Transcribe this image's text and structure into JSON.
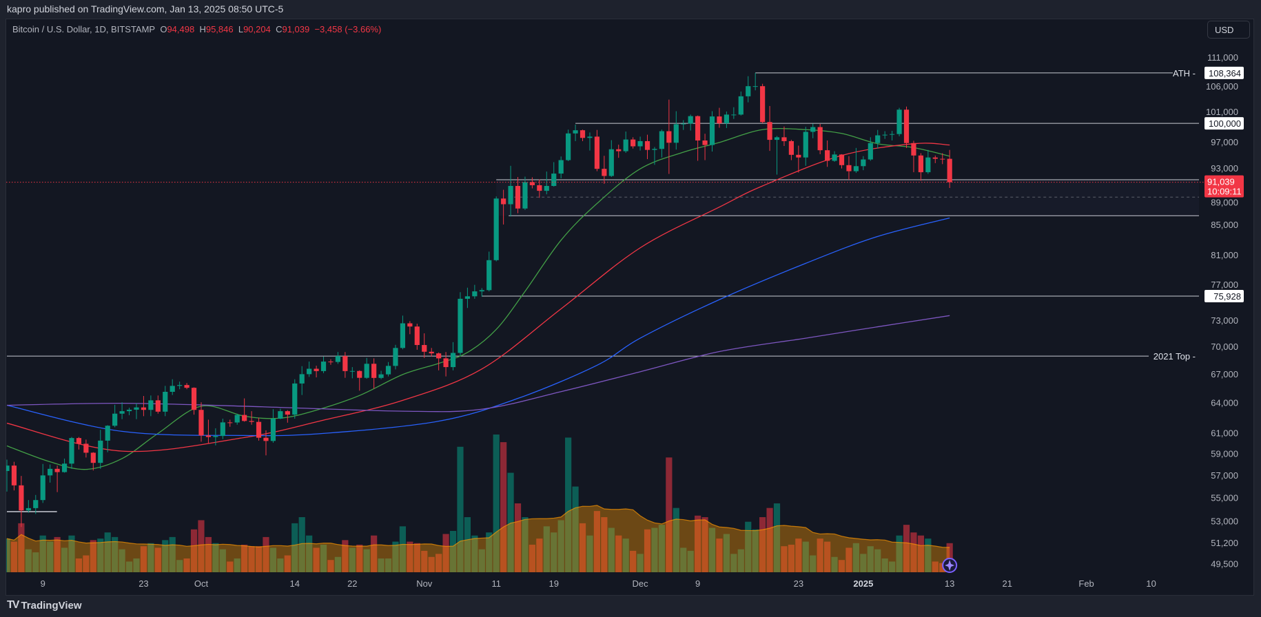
{
  "publish_line": "kapro published on TradingView.com, Jan 13, 2025 08:50 UTC-5",
  "legend": {
    "symbol": "Bitcoin / U.S. Dollar, 1D, BITSTAMP",
    "o_label": "O",
    "o": "94,498",
    "h_label": "H",
    "h": "95,846",
    "l_label": "L",
    "l": "90,204",
    "c_label": "C",
    "c": "91,039",
    "change": "−3,458 (−3.66%)"
  },
  "currency_button": "USD",
  "logo_text": "TradingView",
  "colors": {
    "up": "#089981",
    "down": "#f23645",
    "ma20": "#43a047",
    "ma50": "#f23645",
    "ma100": "#2962ff",
    "ma200": "#7e57c2",
    "volume_ma": "#ff9800",
    "background": "#131722"
  },
  "chart_data": {
    "type": "candlestick",
    "yscale": "log",
    "ylim": [
      49000,
      113000
    ],
    "grid": false,
    "y_ticks": [
      "111,000",
      "106,000",
      "101,000",
      "97,000",
      "93,000",
      "89,000",
      "85,000",
      "81,000",
      "77,000",
      "73,000",
      "70,000",
      "67,000",
      "64,000",
      "61,000",
      "59,000",
      "57,000",
      "55,000",
      "53,000",
      "51,200",
      "49,500"
    ],
    "x_ticks": [
      {
        "date": "2024-09-09",
        "label": "9"
      },
      {
        "date": "2024-09-23",
        "label": "23"
      },
      {
        "date": "2024-10-01",
        "label": "Oct"
      },
      {
        "date": "2024-10-14",
        "label": "14"
      },
      {
        "date": "2024-10-22",
        "label": "22"
      },
      {
        "date": "2024-11-01",
        "label": "Nov"
      },
      {
        "date": "2024-11-11",
        "label": "11"
      },
      {
        "date": "2024-11-19",
        "label": "19"
      },
      {
        "date": "2024-12-01",
        "label": "Dec"
      },
      {
        "date": "2024-12-09",
        "label": "9"
      },
      {
        "date": "2024-12-23",
        "label": "23"
      },
      {
        "date": "2025-01-01",
        "label": "2025",
        "bold": true
      },
      {
        "date": "2025-01-13",
        "label": "13"
      },
      {
        "date": "2025-01-21",
        "label": "21"
      },
      {
        "date": "2025-02-01",
        "label": "Feb"
      },
      {
        "date": "2025-02-10",
        "label": "10"
      }
    ],
    "start_date": "2024-09-04",
    "ohlc": [
      [
        57450,
        58500,
        55600,
        57950
      ],
      [
        57950,
        58300,
        55700,
        56150
      ],
      [
        56150,
        57000,
        52550,
        53950
      ],
      [
        53950,
        54850,
        53750,
        54150
      ],
      [
        54150,
        55300,
        53650,
        54850
      ],
      [
        54850,
        58100,
        54600,
        57050
      ],
      [
        57050,
        58050,
        56400,
        57650
      ],
      [
        57650,
        57950,
        55550,
        57350
      ],
      [
        57350,
        58600,
        57300,
        58130
      ],
      [
        58130,
        60650,
        57650,
        60550
      ],
      [
        60550,
        60650,
        59450,
        60000
      ],
      [
        60000,
        60400,
        58700,
        59150
      ],
      [
        59150,
        59200,
        57500,
        58200
      ],
      [
        58200,
        61350,
        57650,
        60300
      ],
      [
        60300,
        61800,
        59200,
        61750
      ],
      [
        61750,
        63850,
        61600,
        62950
      ],
      [
        62950,
        64100,
        62400,
        63200
      ],
      [
        63200,
        63550,
        62800,
        63350
      ],
      [
        63350,
        64000,
        62400,
        63580
      ],
      [
        63580,
        64750,
        62700,
        63330
      ],
      [
        63330,
        64800,
        62700,
        64300
      ],
      [
        64300,
        64800,
        62950,
        63150
      ],
      [
        63150,
        65800,
        62700,
        65180
      ],
      [
        65180,
        66500,
        64850,
        65800
      ],
      [
        65800,
        66250,
        65450,
        65890
      ],
      [
        65890,
        66100,
        65450,
        65600
      ],
      [
        65600,
        65650,
        62850,
        63330
      ],
      [
        63330,
        64100,
        60200,
        60800
      ],
      [
        60800,
        62350,
        60000,
        60650
      ],
      [
        60650,
        61500,
        59850,
        60750
      ],
      [
        60750,
        62450,
        60450,
        62080
      ],
      [
        62080,
        62350,
        61650,
        62070
      ],
      [
        62070,
        62950,
        61850,
        62820
      ],
      [
        62820,
        64500,
        62150,
        62220
      ],
      [
        62220,
        63200,
        61850,
        62130
      ],
      [
        62130,
        62550,
        60300,
        60580
      ],
      [
        60580,
        61300,
        58900,
        60270
      ],
      [
        60270,
        63400,
        60100,
        62450
      ],
      [
        62450,
        63450,
        62400,
        63200
      ],
      [
        63200,
        63300,
        62050,
        62850
      ],
      [
        62850,
        66500,
        62450,
        66050
      ],
      [
        66050,
        67900,
        64850,
        67040
      ],
      [
        67040,
        68400,
        66750,
        67620
      ],
      [
        67620,
        67950,
        66700,
        67370
      ],
      [
        67370,
        68950,
        67150,
        68400
      ],
      [
        68400,
        68650,
        68050,
        68360
      ],
      [
        68360,
        69450,
        68150,
        69000
      ],
      [
        69000,
        69450,
        66650,
        67370
      ],
      [
        67370,
        67800,
        66600,
        67380
      ],
      [
        67380,
        67450,
        65300,
        66650
      ],
      [
        66650,
        68800,
        66550,
        68160
      ],
      [
        68160,
        68750,
        65500,
        66640
      ],
      [
        66640,
        67400,
        66500,
        67020
      ],
      [
        67020,
        68350,
        66800,
        67930
      ],
      [
        67930,
        70250,
        67550,
        69900
      ],
      [
        69900,
        73600,
        69750,
        72700
      ],
      [
        72700,
        72950,
        71450,
        72330
      ],
      [
        72330,
        72650,
        69700,
        70230
      ],
      [
        70230,
        71550,
        68800,
        69480
      ],
      [
        69480,
        69900,
        68950,
        69300
      ],
      [
        69300,
        69400,
        67450,
        68750
      ],
      [
        68750,
        69450,
        66800,
        67800
      ],
      [
        67800,
        70550,
        67450,
        69350
      ],
      [
        69350,
        76400,
        69050,
        75600
      ],
      [
        75600,
        76950,
        74500,
        75900
      ],
      [
        75900,
        77300,
        75600,
        76500
      ],
      [
        76500,
        76900,
        75850,
        76650
      ],
      [
        76650,
        81500,
        76500,
        80400
      ],
      [
        80400,
        89000,
        80250,
        88700
      ],
      [
        88700,
        89950,
        85100,
        87900
      ],
      [
        87900,
        93450,
        86200,
        90500
      ],
      [
        90500,
        91800,
        86650,
        87300
      ],
      [
        87300,
        91850,
        87100,
        91050
      ],
      [
        91050,
        91750,
        90150,
        90600
      ],
      [
        90600,
        91450,
        88800,
        89800
      ],
      [
        89800,
        92600,
        89300,
        90500
      ],
      [
        90500,
        94000,
        90400,
        92300
      ],
      [
        92300,
        94850,
        91600,
        94300
      ],
      [
        94300,
        99000,
        94150,
        98400
      ],
      [
        98400,
        99800,
        97200,
        98900
      ],
      [
        98900,
        99000,
        97200,
        97700
      ],
      [
        97700,
        98550,
        95750,
        97900
      ],
      [
        97900,
        98950,
        92650,
        93000
      ],
      [
        93000,
        94950,
        90800,
        91950
      ],
      [
        91950,
        97350,
        91800,
        95950
      ],
      [
        95950,
        96650,
        94650,
        95650
      ],
      [
        95650,
        98700,
        95400,
        97450
      ],
      [
        97450,
        97800,
        96050,
        96400
      ],
      [
        96400,
        97900,
        95750,
        97200
      ],
      [
        97200,
        98200,
        94450,
        95850
      ],
      [
        95850,
        96300,
        93600,
        96000
      ],
      [
        96000,
        99000,
        94700,
        98750
      ],
      [
        98750,
        103850,
        92250,
        96950
      ],
      [
        96950,
        101950,
        95900,
        99850
      ],
      [
        99850,
        100500,
        98950,
        99950
      ],
      [
        99950,
        101400,
        98850,
        101150
      ],
      [
        101150,
        101250,
        94200,
        97300
      ],
      [
        97300,
        98350,
        94300,
        96600
      ],
      [
        96600,
        101950,
        95600,
        101100
      ],
      [
        101100,
        102500,
        99300,
        100000
      ],
      [
        100000,
        101900,
        99250,
        101400
      ],
      [
        101400,
        102600,
        100700,
        101400
      ],
      [
        101400,
        105200,
        101250,
        104400
      ],
      [
        104400,
        107800,
        103400,
        106100
      ],
      [
        106100,
        108364,
        105400,
        106100
      ],
      [
        106100,
        106500,
        100000,
        100200
      ],
      [
        100200,
        102800,
        95700,
        97400
      ],
      [
        97400,
        98000,
        92150,
        97800
      ],
      [
        97800,
        99500,
        96450,
        97200
      ],
      [
        97200,
        97400,
        94300,
        95100
      ],
      [
        95100,
        96500,
        92450,
        94700
      ],
      [
        94700,
        99450,
        93450,
        98650
      ],
      [
        98650,
        99950,
        97650,
        99400
      ],
      [
        99400,
        99900,
        95200,
        95800
      ],
      [
        95800,
        97300,
        93300,
        94200
      ],
      [
        94200,
        95650,
        94050,
        95150
      ],
      [
        95150,
        95200,
        93050,
        93550
      ],
      [
        93550,
        94900,
        91400,
        92650
      ],
      [
        92650,
        96150,
        92400,
        93400
      ],
      [
        93400,
        94900,
        92800,
        94400
      ],
      [
        94400,
        97800,
        94200,
        96900
      ],
      [
        96900,
        98950,
        96050,
        98100
      ],
      [
        98100,
        98750,
        97550,
        98200
      ],
      [
        98200,
        98800,
        97300,
        98300
      ],
      [
        98300,
        102500,
        97950,
        102200
      ],
      [
        102200,
        102700,
        96150,
        96900
      ],
      [
        96900,
        97250,
        92500,
        95000
      ],
      [
        95000,
        95350,
        91250,
        92500
      ],
      [
        92500,
        95850,
        92250,
        94700
      ],
      [
        94700,
        95000,
        93850,
        94500
      ],
      [
        94500,
        95350,
        93700,
        94498
      ],
      [
        94498,
        95846,
        90204,
        91039
      ]
    ],
    "volume": [
      2200,
      2000,
      3200,
      1500,
      1300,
      2400,
      2000,
      2300,
      1600,
      2400,
      900,
      1100,
      2100,
      2200,
      2600,
      2300,
      1500,
      700,
      900,
      1700,
      1900,
      1600,
      2100,
      2300,
      800,
      900,
      2800,
      3400,
      2300,
      1900,
      1500,
      700,
      900,
      1800,
      1700,
      1700,
      2300,
      1600,
      900,
      1100,
      3200,
      3600,
      2400,
      1600,
      1800,
      800,
      1000,
      2100,
      1600,
      1800,
      1500,
      2400,
      900,
      900,
      2000,
      3000,
      2000,
      1900,
      1400,
      1000,
      1200,
      2500,
      2700,
      8200,
      3600,
      2400,
      1500,
      2600,
      9000,
      8500,
      6500,
      4500,
      3600,
      1800,
      2200,
      3000,
      2600,
      3400,
      8800,
      5600,
      3200,
      2400,
      4000,
      3600,
      2900,
      2400,
      2200,
      1400,
      1200,
      2800,
      2900,
      3100,
      7500,
      4200,
      1600,
      1400,
      3700,
      3600,
      2900,
      2200,
      2500,
      1200,
      1500,
      3300,
      2800,
      3600,
      4200,
      4500,
      1700,
      1800,
      2200,
      2000,
      1100,
      2200,
      2000,
      1000,
      800,
      1600,
      1900,
      1200,
      1700,
      1500,
      900,
      700,
      2400,
      3100,
      2600,
      2400,
      2200,
      700,
      600,
      1900
    ],
    "moving_averages": [
      {
        "key": "ma20",
        "points": [
          [
            "2024-09-04",
            59800
          ],
          [
            "2024-09-10",
            58300
          ],
          [
            "2024-09-15",
            57600
          ],
          [
            "2024-09-20",
            58600
          ],
          [
            "2024-09-25",
            61000
          ],
          [
            "2024-10-01",
            63700
          ],
          [
            "2024-10-07",
            62700
          ],
          [
            "2024-10-12",
            62500
          ],
          [
            "2024-10-17",
            63300
          ],
          [
            "2024-10-23",
            64800
          ],
          [
            "2024-10-29",
            67000
          ],
          [
            "2024-11-03",
            68200
          ],
          [
            "2024-11-07",
            69400
          ],
          [
            "2024-11-11",
            72000
          ],
          [
            "2024-11-15",
            76500
          ],
          [
            "2024-11-20",
            83000
          ],
          [
            "2024-11-25",
            88000
          ],
          [
            "2024-12-01",
            93000
          ],
          [
            "2024-12-07",
            95500
          ],
          [
            "2024-12-12",
            97000
          ],
          [
            "2024-12-18",
            99000
          ],
          [
            "2024-12-24",
            99000
          ],
          [
            "2024-12-29",
            98400
          ],
          [
            "2025-01-03",
            96800
          ],
          [
            "2025-01-08",
            96200
          ],
          [
            "2025-01-13",
            94900
          ]
        ]
      },
      {
        "key": "ma50",
        "points": [
          [
            "2024-09-04",
            62000
          ],
          [
            "2024-09-20",
            59300
          ],
          [
            "2024-10-07",
            60600
          ],
          [
            "2024-10-18",
            62300
          ],
          [
            "2024-10-29",
            64300
          ],
          [
            "2024-11-09",
            67600
          ],
          [
            "2024-11-20",
            74400
          ],
          [
            "2024-12-01",
            82000
          ],
          [
            "2024-12-12",
            87500
          ],
          [
            "2024-12-18",
            90500
          ],
          [
            "2024-12-29",
            95000
          ],
          [
            "2025-01-08",
            96800
          ],
          [
            "2025-01-13",
            96600
          ]
        ]
      },
      {
        "key": "ma100",
        "points": [
          [
            "2024-09-04",
            63800
          ],
          [
            "2024-09-20",
            61200
          ],
          [
            "2024-10-07",
            60800
          ],
          [
            "2024-10-18",
            61000
          ],
          [
            "2024-11-03",
            62200
          ],
          [
            "2024-11-14",
            64500
          ],
          [
            "2024-11-25",
            68000
          ],
          [
            "2024-12-01",
            71000
          ],
          [
            "2024-12-12",
            75500
          ],
          [
            "2024-12-24",
            80000
          ],
          [
            "2025-01-03",
            83500
          ],
          [
            "2025-01-13",
            86000
          ]
        ]
      },
      {
        "key": "ma200",
        "points": [
          [
            "2024-09-04",
            63800
          ],
          [
            "2024-09-20",
            64000
          ],
          [
            "2024-10-07",
            63700
          ],
          [
            "2024-10-29",
            63200
          ],
          [
            "2024-11-09",
            63400
          ],
          [
            "2024-11-20",
            65200
          ],
          [
            "2024-12-01",
            67300
          ],
          [
            "2024-12-12",
            69500
          ],
          [
            "2024-12-24",
            71000
          ],
          [
            "2025-01-03",
            72300
          ],
          [
            "2025-01-13",
            73600
          ]
        ]
      }
    ],
    "levels": [
      {
        "name": "ath",
        "price": 108364,
        "from": "2024-12-17",
        "label": "ATH",
        "tag": "108,364"
      },
      {
        "name": "round-100k",
        "price": 100000,
        "from": "2024-11-22",
        "label": "",
        "tag": "100,000"
      },
      {
        "name": "breakout",
        "price": 75928,
        "from": "2024-11-09",
        "label": "",
        "tag": "75,928"
      },
      {
        "name": "2021-top",
        "price": 69000,
        "from": "2024-09-04",
        "label": "2021 Top",
        "tag": ""
      }
    ],
    "range_box": {
      "top": 91400,
      "mid": 88900,
      "bottom": 86300,
      "from": "2024-11-11",
      "to": "2025-02-17"
    },
    "support_stub": {
      "price": 53850,
      "from": "2024-09-04",
      "to": "2024-09-10"
    },
    "last_price": {
      "price": 91039,
      "label": "91,039",
      "countdown": "10:09:11"
    }
  }
}
